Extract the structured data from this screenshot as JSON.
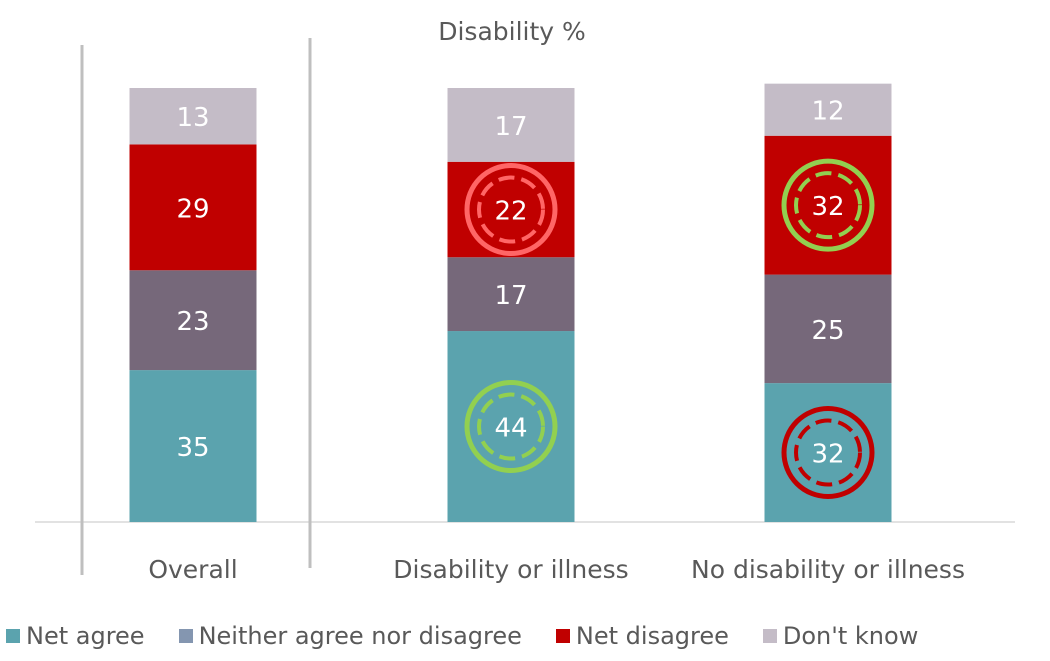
{
  "chart_data": {
    "type": "bar",
    "stacked": true,
    "title": "Disability %",
    "categories": [
      "Overall",
      "Disability or illness",
      "No disability or illness"
    ],
    "series": [
      {
        "name": "Net agree",
        "color": "#5BA3AE",
        "values": [
          35,
          44,
          32
        ]
      },
      {
        "name": "Neither agree nor disagree",
        "color": "#76687A",
        "values": [
          23,
          17,
          25
        ]
      },
      {
        "name": "Net disagree",
        "color": "#C00000",
        "values": [
          29,
          22,
          32
        ]
      },
      {
        "name": "Don't know",
        "color": "#C4BCC7",
        "values": [
          13,
          17,
          12
        ]
      }
    ],
    "legend_position": "bottom",
    "legend_swatch_colors": [
      "#5BA3AE",
      "#8496B0",
      "#C00000",
      "#C4BCC7"
    ],
    "gridlines": false,
    "ylim": [
      0,
      100
    ],
    "highlight_markers": [
      {
        "category": "Disability or illness",
        "series": "Net disagree",
        "style": "double-ring",
        "color": "#FF6666"
      },
      {
        "category": "Disability or illness",
        "series": "Net agree",
        "style": "double-ring",
        "color": "#92D050"
      },
      {
        "category": "No disability or illness",
        "series": "Net disagree",
        "style": "double-ring",
        "color": "#92D050"
      },
      {
        "category": "No disability or illness",
        "series": "Net agree",
        "style": "double-ring",
        "color": "#C00000"
      }
    ]
  }
}
